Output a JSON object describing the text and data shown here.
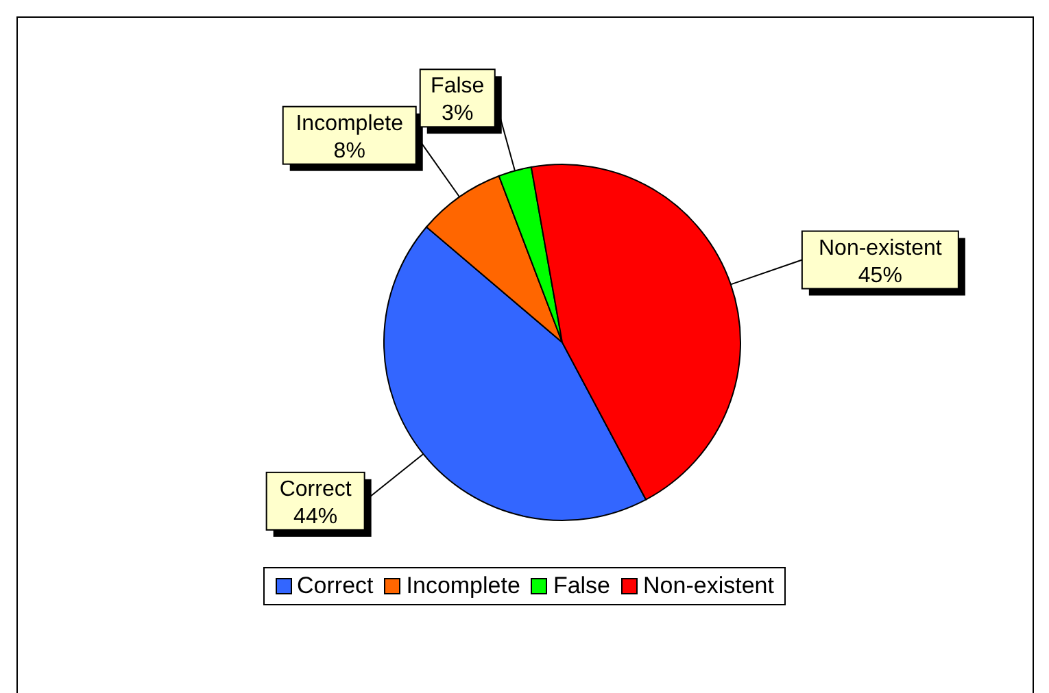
{
  "chart_data": {
    "type": "pie",
    "categories": [
      "Correct",
      "Incomplete",
      "False",
      "Non-existent"
    ],
    "values": [
      44,
      8,
      3,
      45
    ],
    "colors": [
      "#3366ff",
      "#ff6600",
      "#00ff00",
      "#ff0000"
    ],
    "value_labels": [
      "44%",
      "8%",
      "3%",
      "45%"
    ],
    "legend": "bottom"
  }
}
